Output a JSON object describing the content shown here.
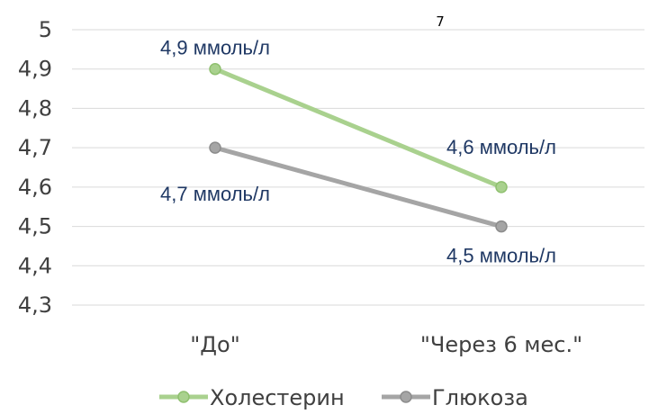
{
  "chart_data": {
    "type": "line",
    "title": "",
    "top_note": "7",
    "xlabel": "",
    "ylabel": "",
    "categories": [
      "\"До\"",
      "\"Через 6 мес.\""
    ],
    "ylim": [
      4.3,
      5.0
    ],
    "yticks": [
      "4,3",
      "4,4",
      "4,5",
      "4,6",
      "4,7",
      "4,8",
      "4,9",
      "5"
    ],
    "grid": true,
    "legend_position": "bottom",
    "series": [
      {
        "name": "Холестерин",
        "color": "#a9d18e",
        "values": [
          4.9,
          4.6
        ],
        "data_labels": [
          "4,9 ммоль/л",
          "4,6 ммоль/л"
        ]
      },
      {
        "name": "Глюкоза",
        "color": "#a5a5a5",
        "values": [
          4.7,
          4.5
        ],
        "data_labels": [
          "4,7 ммоль/л",
          "4,5 ммоль/л"
        ]
      }
    ]
  }
}
